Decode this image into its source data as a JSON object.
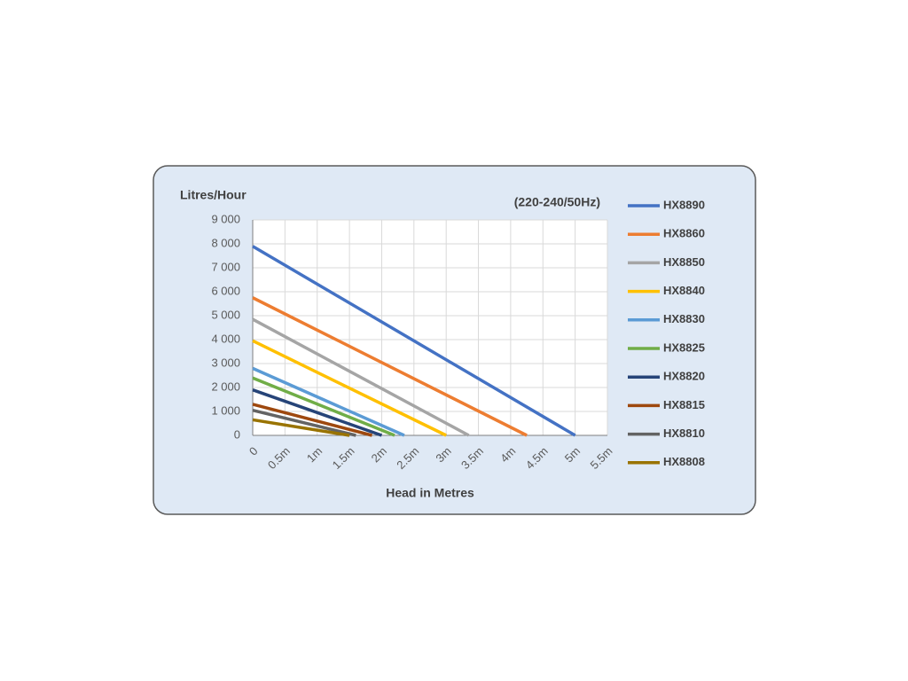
{
  "chart_data": {
    "type": "line",
    "y_label": "Litres/Hour",
    "annotation": "(220-240/50Hz)",
    "x_label": "Head in Metres",
    "xlim": [
      0,
      5.5
    ],
    "ylim": [
      0,
      9000
    ],
    "xticks": [
      0,
      {
        "value": 0.5,
        "label": "0.5m"
      },
      {
        "value": 1,
        "label": "1m"
      },
      {
        "value": 1.5,
        "label": "1.5m"
      },
      {
        "value": 2,
        "label": "2m"
      },
      {
        "value": 2.5,
        "label": "2.5m"
      },
      {
        "value": 3,
        "label": "3m"
      },
      {
        "value": 3.5,
        "label": "3.5m"
      },
      {
        "value": 4,
        "label": "4m"
      },
      {
        "value": 4.5,
        "label": "4.5m"
      },
      {
        "value": 5,
        "label": "5m"
      },
      {
        "value": 5.5,
        "label": "5.5m"
      }
    ],
    "yticks": [
      0,
      {
        "value": 1000,
        "label": "1 000"
      },
      {
        "value": 2000,
        "label": "2 000"
      },
      {
        "value": 3000,
        "label": "3 000"
      },
      {
        "value": 4000,
        "label": "4 000"
      },
      {
        "value": 5000,
        "label": "5 000"
      },
      {
        "value": 6000,
        "label": "6 000"
      },
      {
        "value": 7000,
        "label": "7 000"
      },
      {
        "value": 8000,
        "label": "8 000"
      },
      {
        "value": 9000,
        "label": "9 000"
      }
    ],
    "grid": true,
    "legend": "right",
    "series": [
      {
        "name": "HX8890",
        "color": "#4472c4",
        "x": [
          0,
          5
        ],
        "values": [
          7900,
          0
        ]
      },
      {
        "name": "HX8860",
        "color": "#ed7d31",
        "x": [
          0,
          4.25
        ],
        "values": [
          5750,
          0
        ]
      },
      {
        "name": "HX8850",
        "color": "#a5a5a5",
        "x": [
          0,
          3.35
        ],
        "values": [
          4850,
          0
        ]
      },
      {
        "name": "HX8840",
        "color": "#ffc000",
        "x": [
          0,
          3
        ],
        "values": [
          3950,
          0
        ]
      },
      {
        "name": "HX8830",
        "color": "#5b9bd5",
        "x": [
          0,
          2.35
        ],
        "values": [
          2800,
          0
        ]
      },
      {
        "name": "HX8825",
        "color": "#70ad47",
        "x": [
          0,
          2.2
        ],
        "values": [
          2400,
          0
        ]
      },
      {
        "name": "HX8820",
        "color": "#264478",
        "x": [
          0,
          2
        ],
        "values": [
          1900,
          0
        ]
      },
      {
        "name": "HX8815",
        "color": "#9e480e",
        "x": [
          0,
          1.85
        ],
        "values": [
          1300,
          0
        ]
      },
      {
        "name": "HX8810",
        "color": "#636363",
        "x": [
          0,
          1.6
        ],
        "values": [
          1050,
          0
        ]
      },
      {
        "name": "HX8808",
        "color": "#997300",
        "x": [
          0,
          1.5
        ],
        "values": [
          650,
          0
        ]
      }
    ]
  }
}
